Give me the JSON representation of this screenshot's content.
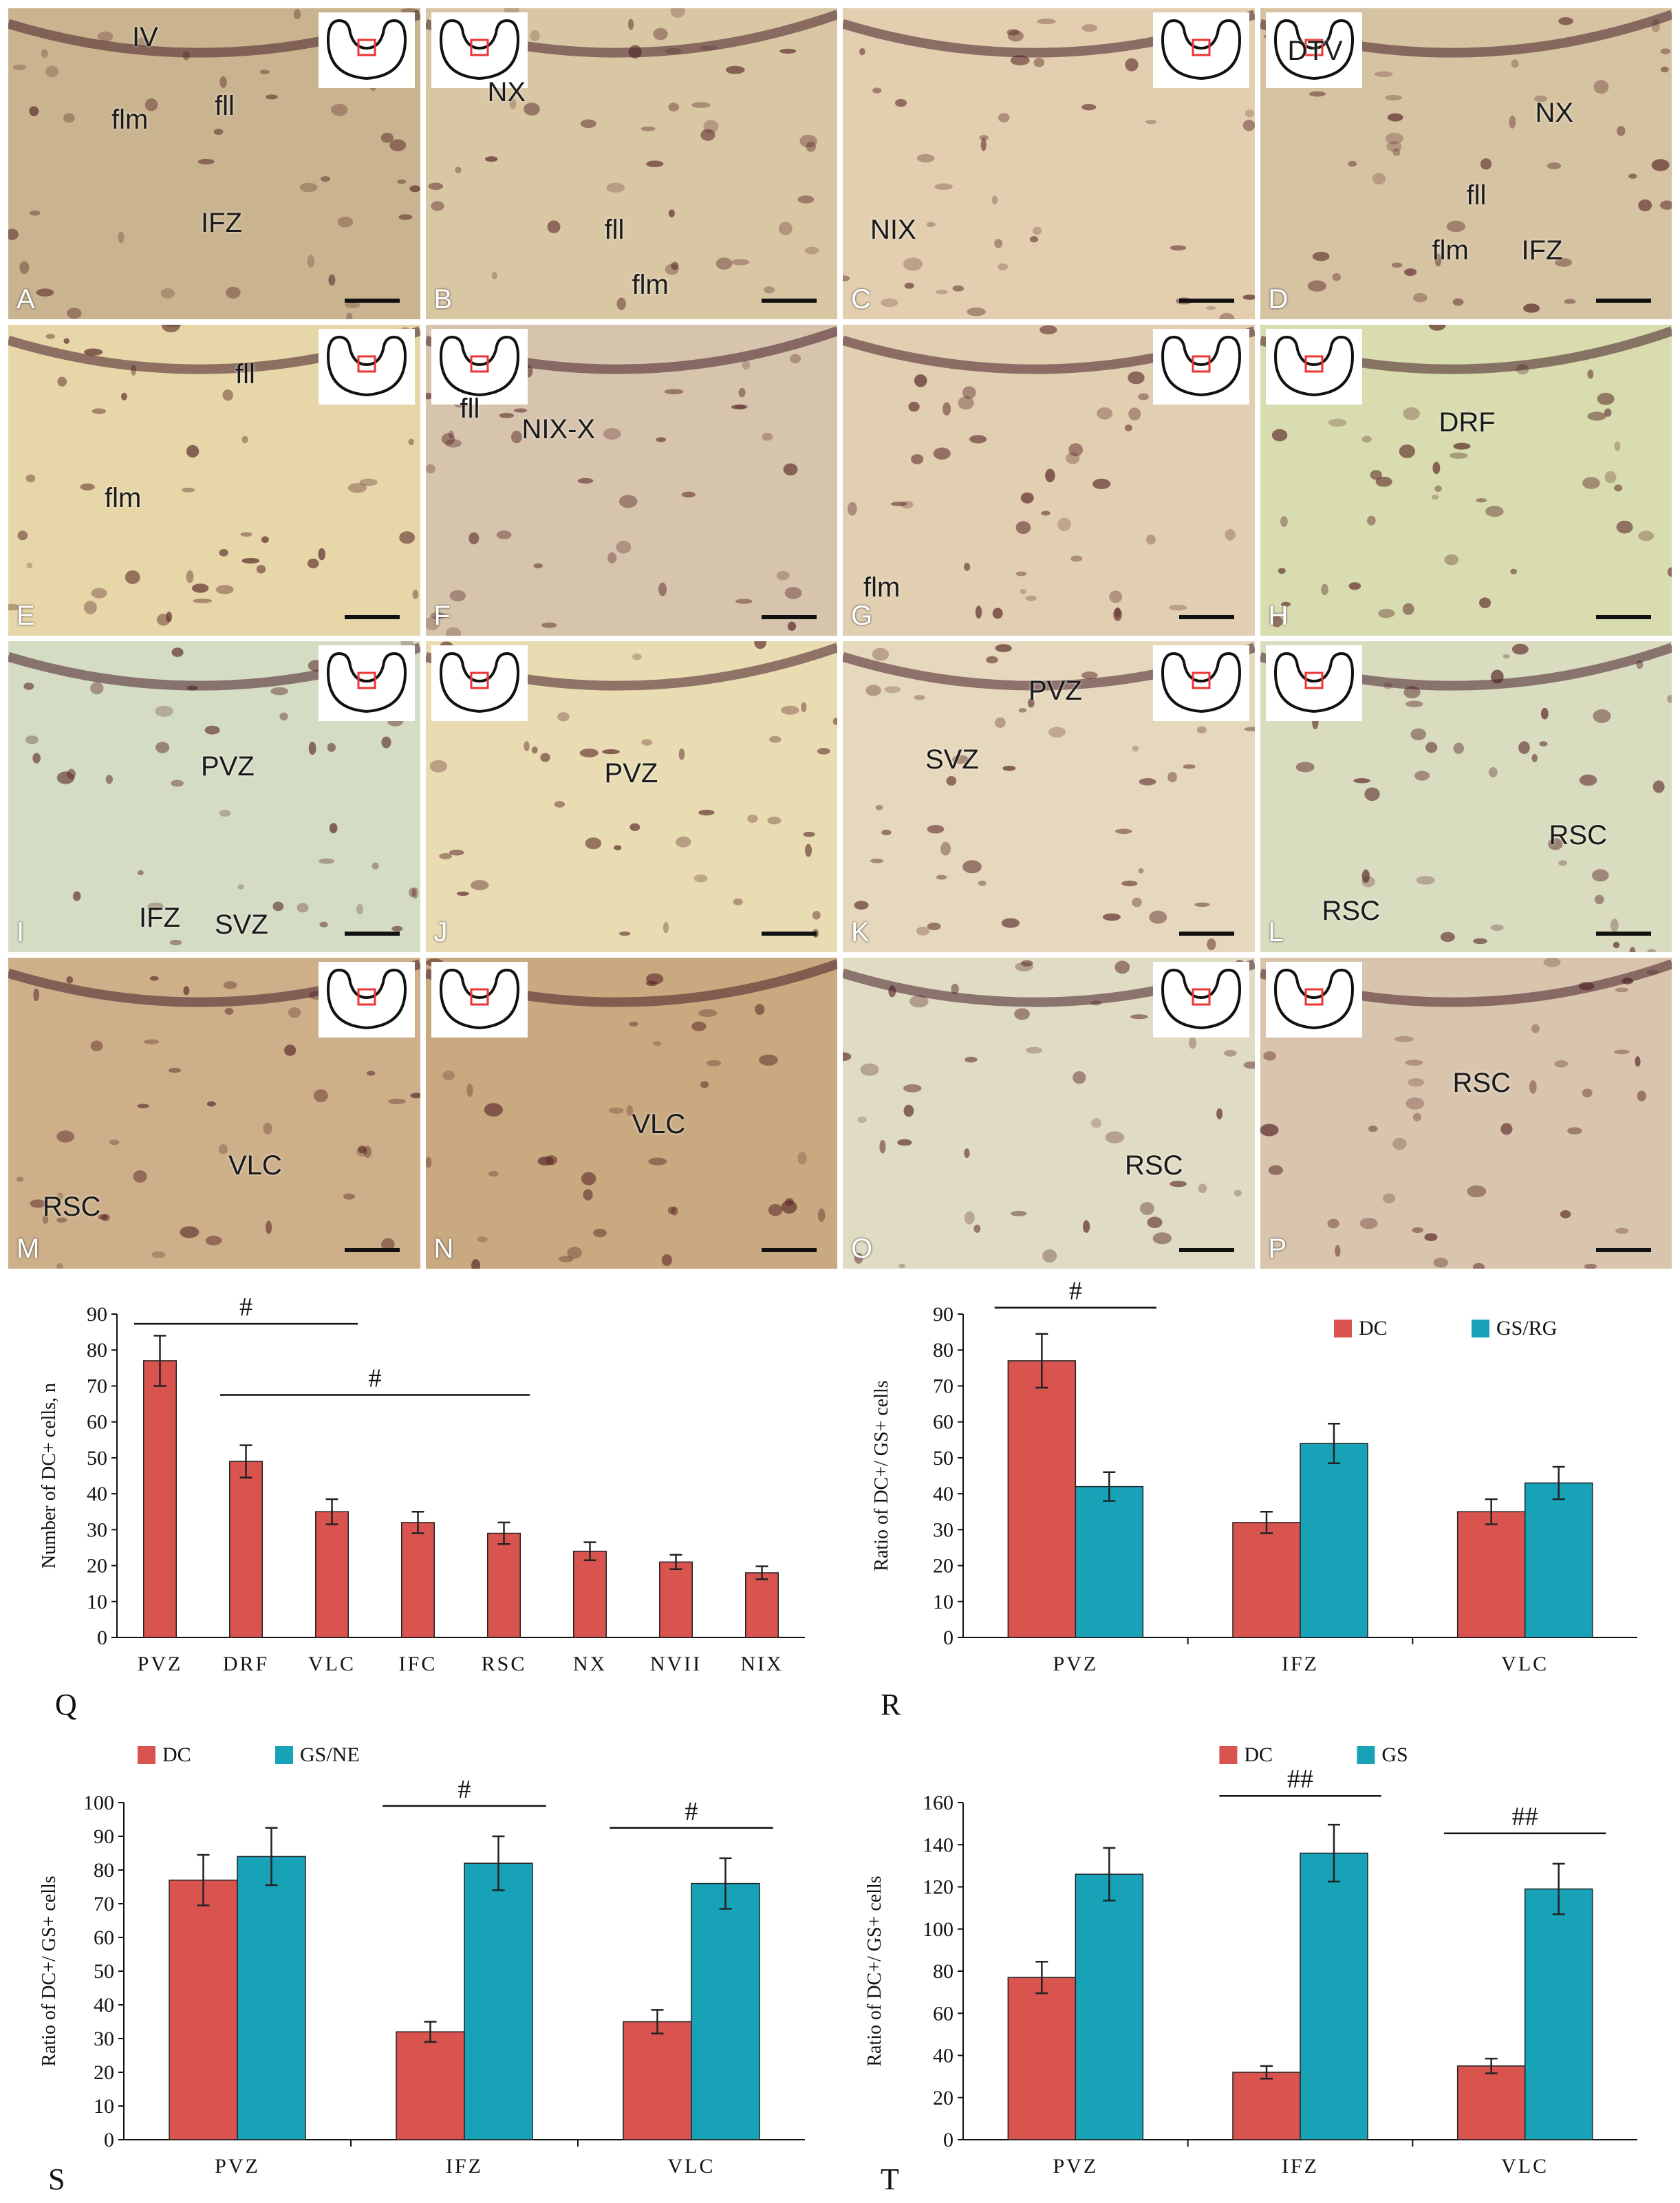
{
  "colors": {
    "dc": "#d9534f",
    "gs": "#17a2b8",
    "axis": "#111111"
  },
  "panels": [
    {
      "id": "A",
      "labels": [
        "IV",
        "fll",
        "flm",
        "IFZ"
      ],
      "tint": "#c9b48f"
    },
    {
      "id": "B",
      "labels": [
        "NX",
        "fll",
        "flm"
      ],
      "tint": "#d9c7a4"
    },
    {
      "id": "C",
      "labels": [
        "NIX"
      ],
      "tint": "#e3cfb0"
    },
    {
      "id": "D",
      "labels": [
        "DTV",
        "NX",
        "fll",
        "flm",
        "IFZ"
      ],
      "tint": "#d6c3a2"
    },
    {
      "id": "E",
      "labels": [
        "fll",
        "flm"
      ],
      "tint": "#e6d6a8"
    },
    {
      "id": "F",
      "labels": [
        "fll",
        "NIX-X"
      ],
      "tint": "#d7c4ad"
    },
    {
      "id": "G",
      "labels": [
        "flm"
      ],
      "tint": "#e2cfb2"
    },
    {
      "id": "H",
      "labels": [
        "DRF"
      ],
      "tint": "#d8dcae"
    },
    {
      "id": "I",
      "labels": [
        "PVZ",
        "IFZ",
        "SVZ"
      ],
      "tint": "#d5dcc4"
    },
    {
      "id": "J",
      "labels": [
        "PVZ"
      ],
      "tint": "#e9dcb2"
    },
    {
      "id": "K",
      "labels": [
        "PVZ",
        "SVZ"
      ],
      "tint": "#e6d8bc"
    },
    {
      "id": "L",
      "labels": [
        "RSC",
        "RSC"
      ],
      "tint": "#dadcc0"
    },
    {
      "id": "M",
      "labels": [
        "RSC",
        "VLC"
      ],
      "tint": "#cdb08a"
    },
    {
      "id": "N",
      "labels": [
        "VLC"
      ],
      "tint": "#c9a97f"
    },
    {
      "id": "O",
      "labels": [
        "RSC"
      ],
      "tint": "#e0dcc4"
    },
    {
      "id": "P",
      "labels": [
        "RSC"
      ],
      "tint": "#d9c5ad"
    }
  ],
  "chart_data": [
    {
      "id": "Q",
      "type": "bar",
      "ylabel": "Number of DC+ cells, n",
      "ylim": [
        0,
        90
      ],
      "yticks": [
        0,
        10,
        20,
        30,
        40,
        50,
        60,
        70,
        80,
        90
      ],
      "categories": [
        "PVZ",
        "DRF",
        "VLC",
        "IFC",
        "RSC",
        "NX",
        "NVII",
        "NIX"
      ],
      "series": [
        {
          "values": [
            77,
            49,
            35,
            32,
            29,
            24,
            21,
            18
          ],
          "errors": [
            7,
            4.5,
            3.5,
            3,
            3,
            2.5,
            2,
            1.8
          ]
        }
      ],
      "significance": [
        {
          "label": "#",
          "from": 0,
          "to": 2
        },
        {
          "label": "#",
          "from": 1,
          "to": 4
        }
      ]
    },
    {
      "id": "R",
      "type": "bar",
      "ylabel": "Ratio of DC+/ GS+ cells",
      "ylim": [
        0,
        90
      ],
      "yticks": [
        0,
        10,
        20,
        30,
        40,
        50,
        60,
        70,
        80,
        90
      ],
      "categories": [
        "PVZ",
        "IFZ",
        "VLC"
      ],
      "series": [
        {
          "name": "DC",
          "values": [
            77,
            32,
            35
          ],
          "errors": [
            7.5,
            3,
            3.5
          ]
        },
        {
          "name": "GS/RG",
          "values": [
            42,
            54,
            43
          ],
          "errors": [
            4,
            5.5,
            4.5
          ]
        }
      ],
      "legend": "top-right",
      "significance": [
        {
          "label": "#",
          "group": 0
        }
      ]
    },
    {
      "id": "S",
      "type": "bar",
      "ylabel": "Ratio of DC+/ GS+ cells",
      "ylim": [
        0,
        100
      ],
      "yticks": [
        0,
        10,
        20,
        30,
        40,
        50,
        60,
        70,
        80,
        90,
        100
      ],
      "categories": [
        "PVZ",
        "IFZ",
        "VLC"
      ],
      "series": [
        {
          "name": "DC",
          "values": [
            77,
            32,
            35
          ],
          "errors": [
            7.5,
            3,
            3.5
          ]
        },
        {
          "name": "GS/NE",
          "values": [
            84,
            82,
            76
          ],
          "errors": [
            8.5,
            8,
            7.5
          ]
        }
      ],
      "legend": "top-left",
      "significance": [
        {
          "label": "#",
          "group": 1
        },
        {
          "label": "#",
          "group": 2
        }
      ]
    },
    {
      "id": "T",
      "type": "bar",
      "ylabel": "Ratio of DC+/ GS+ cells",
      "ylim": [
        0,
        160
      ],
      "yticks": [
        0,
        20,
        40,
        60,
        80,
        100,
        120,
        140,
        160
      ],
      "categories": [
        "PVZ",
        "IFZ",
        "VLC"
      ],
      "series": [
        {
          "name": "DC",
          "values": [
            77,
            32,
            35
          ],
          "errors": [
            7.5,
            3,
            3.5
          ]
        },
        {
          "name": "GS",
          "values": [
            126,
            136,
            119
          ],
          "errors": [
            12.5,
            13.5,
            12
          ]
        }
      ],
      "legend": "top-center",
      "significance": [
        {
          "label": "##",
          "group": 1
        },
        {
          "label": "##",
          "group": 2
        }
      ]
    }
  ]
}
